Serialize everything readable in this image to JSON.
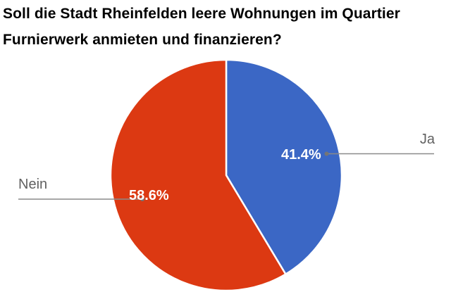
{
  "chart": {
    "title": "Soll die Stadt Rheinfelden leere Wohnungen im Quartier Furnierwerk anmieten und finanzieren?",
    "title_color": "#000000",
    "background_color": "#FFFFFF",
    "inside_label_color": "#FFFFFF",
    "outside_label_color": "#616161",
    "leader_line_color": "#8A8A8A",
    "leader_dot_color": "#757575"
  },
  "chart_data": {
    "type": "pie",
    "title": "Soll die Stadt Rheinfelden leere Wohnungen im Quartier Furnierwerk anmieten und finanzieren?",
    "categories": [
      "Ja",
      "Nein"
    ],
    "values": [
      41.4,
      58.6
    ],
    "unit": "%",
    "slices": [
      {
        "label": "Ja",
        "value": 41.4,
        "pct_label": "41.4%",
        "color": "#3B67C5"
      },
      {
        "label": "Nein",
        "value": 58.6,
        "pct_label": "58.6%",
        "color": "#DC3912"
      }
    ],
    "start_angle_deg": 0,
    "direction": "clockwise",
    "slice_border_color": "#FFFFFF",
    "legend_position": "outside-labels",
    "grid": false
  }
}
